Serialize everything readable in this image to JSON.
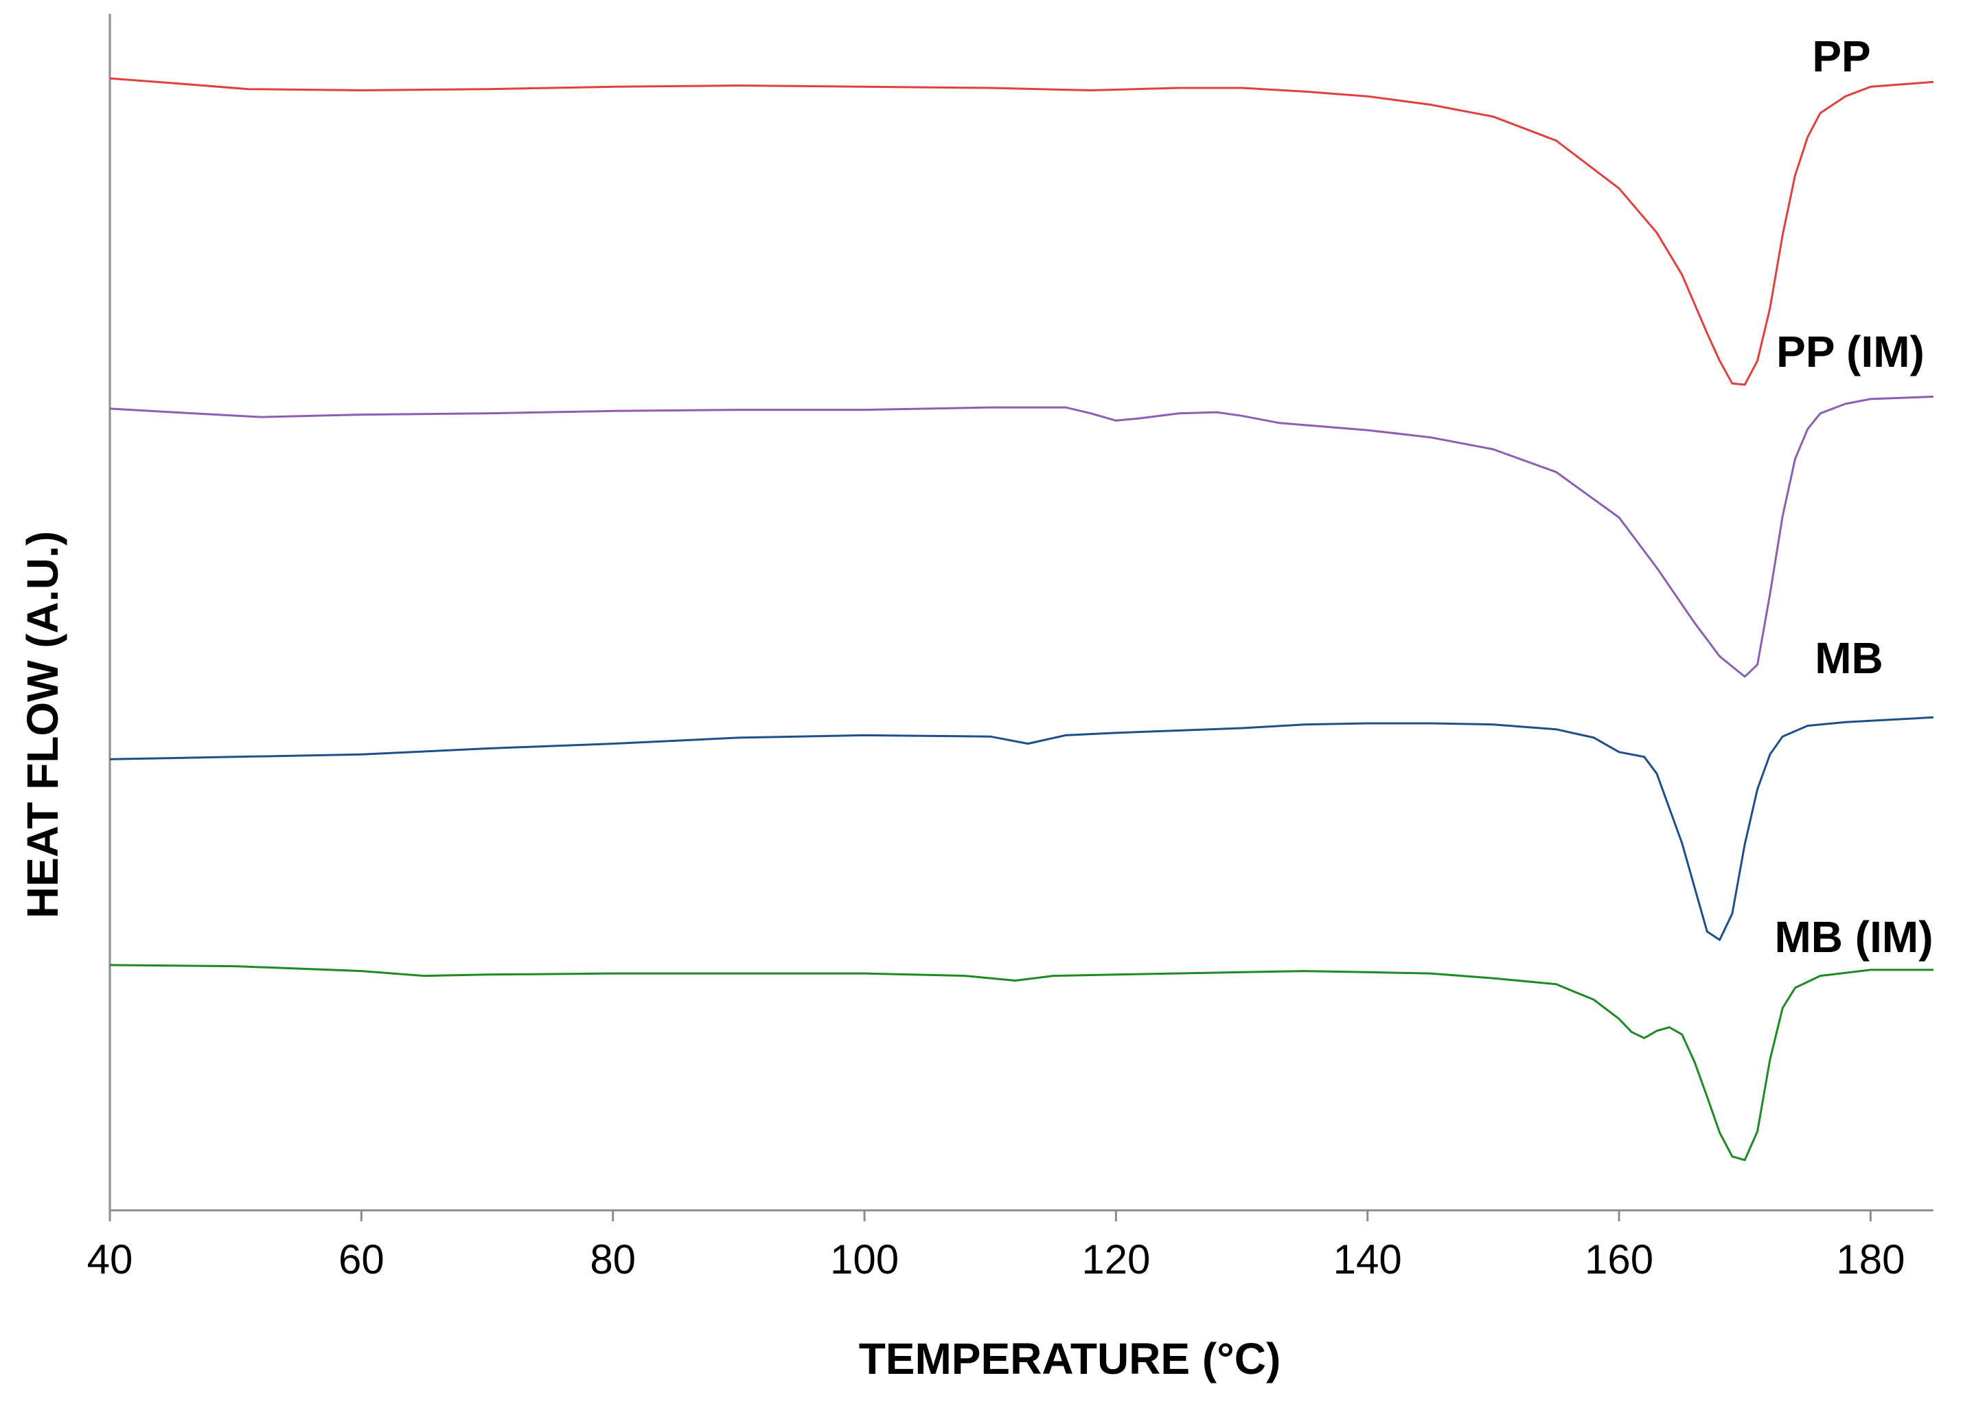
{
  "chart_data": {
    "type": "line",
    "title": "",
    "xlabel": "TEMPERATURE (°C)",
    "ylabel": "HEAT FLOW (A.U.)",
    "xlim": [
      40,
      185
    ],
    "ylim": [
      0,
      100
    ],
    "grid": false,
    "x_ticks": [
      40,
      60,
      80,
      100,
      120,
      140,
      160,
      180
    ],
    "series": [
      {
        "name": "PP",
        "color": "#e0403e",
        "points": [
          [
            40,
            94.6
          ],
          [
            45,
            94.2
          ],
          [
            51,
            93.7
          ],
          [
            60,
            93.6
          ],
          [
            70,
            93.7
          ],
          [
            80,
            93.9
          ],
          [
            90,
            94.0
          ],
          [
            100,
            93.9
          ],
          [
            110,
            93.8
          ],
          [
            118,
            93.6
          ],
          [
            125,
            93.8
          ],
          [
            130,
            93.8
          ],
          [
            135,
            93.5
          ],
          [
            140,
            93.1
          ],
          [
            145,
            92.4
          ],
          [
            150,
            91.4
          ],
          [
            155,
            89.4
          ],
          [
            160,
            85.4
          ],
          [
            163,
            81.7
          ],
          [
            165,
            78.2
          ],
          [
            167,
            73.3
          ],
          [
            168,
            71.0
          ],
          [
            169,
            69.1
          ],
          [
            170,
            69.0
          ],
          [
            171,
            71.0
          ],
          [
            172,
            75.4
          ],
          [
            173,
            81.5
          ],
          [
            174,
            86.5
          ],
          [
            175,
            89.7
          ],
          [
            176,
            91.7
          ],
          [
            178,
            93.1
          ],
          [
            180,
            93.9
          ],
          [
            185,
            94.3
          ]
        ]
      },
      {
        "name": "PP (IM)",
        "color": "#8c5fb3",
        "points": [
          [
            40,
            67.0
          ],
          [
            45,
            66.7
          ],
          [
            52,
            66.3
          ],
          [
            60,
            66.5
          ],
          [
            70,
            66.6
          ],
          [
            80,
            66.8
          ],
          [
            90,
            66.9
          ],
          [
            100,
            66.9
          ],
          [
            110,
            67.1
          ],
          [
            116,
            67.1
          ],
          [
            118,
            66.6
          ],
          [
            120,
            66.0
          ],
          [
            122,
            66.2
          ],
          [
            125,
            66.6
          ],
          [
            128,
            66.7
          ],
          [
            130,
            66.4
          ],
          [
            133,
            65.8
          ],
          [
            140,
            65.2
          ],
          [
            145,
            64.6
          ],
          [
            150,
            63.6
          ],
          [
            155,
            61.7
          ],
          [
            160,
            57.9
          ],
          [
            163,
            53.7
          ],
          [
            166,
            49.1
          ],
          [
            168,
            46.3
          ],
          [
            170,
            44.6
          ],
          [
            171,
            45.6
          ],
          [
            172,
            51.5
          ],
          [
            173,
            58.0
          ],
          [
            174,
            62.8
          ],
          [
            175,
            65.3
          ],
          [
            176,
            66.6
          ],
          [
            178,
            67.4
          ],
          [
            180,
            67.8
          ],
          [
            185,
            68.0
          ]
        ]
      },
      {
        "name": "MB",
        "color": "#1f4e8c",
        "points": [
          [
            40,
            37.7
          ],
          [
            50,
            37.9
          ],
          [
            60,
            38.1
          ],
          [
            70,
            38.6
          ],
          [
            80,
            39.0
          ],
          [
            90,
            39.5
          ],
          [
            100,
            39.7
          ],
          [
            110,
            39.6
          ],
          [
            113,
            39.0
          ],
          [
            116,
            39.7
          ],
          [
            120,
            39.9
          ],
          [
            130,
            40.3
          ],
          [
            135,
            40.6
          ],
          [
            140,
            40.7
          ],
          [
            145,
            40.7
          ],
          [
            150,
            40.6
          ],
          [
            155,
            40.2
          ],
          [
            158,
            39.5
          ],
          [
            160,
            38.3
          ],
          [
            162,
            37.9
          ],
          [
            163,
            36.5
          ],
          [
            165,
            30.7
          ],
          [
            166,
            27.0
          ],
          [
            167,
            23.3
          ],
          [
            168,
            22.6
          ],
          [
            169,
            24.8
          ],
          [
            170,
            30.6
          ],
          [
            171,
            35.2
          ],
          [
            172,
            38.1
          ],
          [
            173,
            39.6
          ],
          [
            175,
            40.5
          ],
          [
            178,
            40.8
          ],
          [
            185,
            41.2
          ]
        ]
      },
      {
        "name": "MB (IM)",
        "color": "#1e8a23",
        "points": [
          [
            40,
            20.5
          ],
          [
            50,
            20.4
          ],
          [
            60,
            20.0
          ],
          [
            65,
            19.6
          ],
          [
            70,
            19.7
          ],
          [
            80,
            19.8
          ],
          [
            90,
            19.8
          ],
          [
            100,
            19.8
          ],
          [
            108,
            19.6
          ],
          [
            112,
            19.2
          ],
          [
            115,
            19.6
          ],
          [
            120,
            19.7
          ],
          [
            130,
            19.9
          ],
          [
            135,
            20.0
          ],
          [
            140,
            19.9
          ],
          [
            145,
            19.8
          ],
          [
            150,
            19.4
          ],
          [
            155,
            18.9
          ],
          [
            158,
            17.6
          ],
          [
            160,
            16.0
          ],
          [
            161,
            14.9
          ],
          [
            162,
            14.4
          ],
          [
            163,
            15.0
          ],
          [
            164,
            15.3
          ],
          [
            165,
            14.7
          ],
          [
            166,
            12.4
          ],
          [
            167,
            9.5
          ],
          [
            168,
            6.5
          ],
          [
            169,
            4.5
          ],
          [
            170,
            4.2
          ],
          [
            171,
            6.6
          ],
          [
            172,
            12.6
          ],
          [
            173,
            16.9
          ],
          [
            174,
            18.6
          ],
          [
            176,
            19.6
          ],
          [
            180,
            20.1
          ],
          [
            185,
            20.1
          ]
        ]
      }
    ],
    "annotations": [
      {
        "text": "PP",
        "series": "PP"
      },
      {
        "text": "PP (IM)",
        "series": "PP (IM)"
      },
      {
        "text": "MB",
        "series": "MB"
      },
      {
        "text": "MB (IM)",
        "series": "MB (IM)"
      }
    ]
  }
}
